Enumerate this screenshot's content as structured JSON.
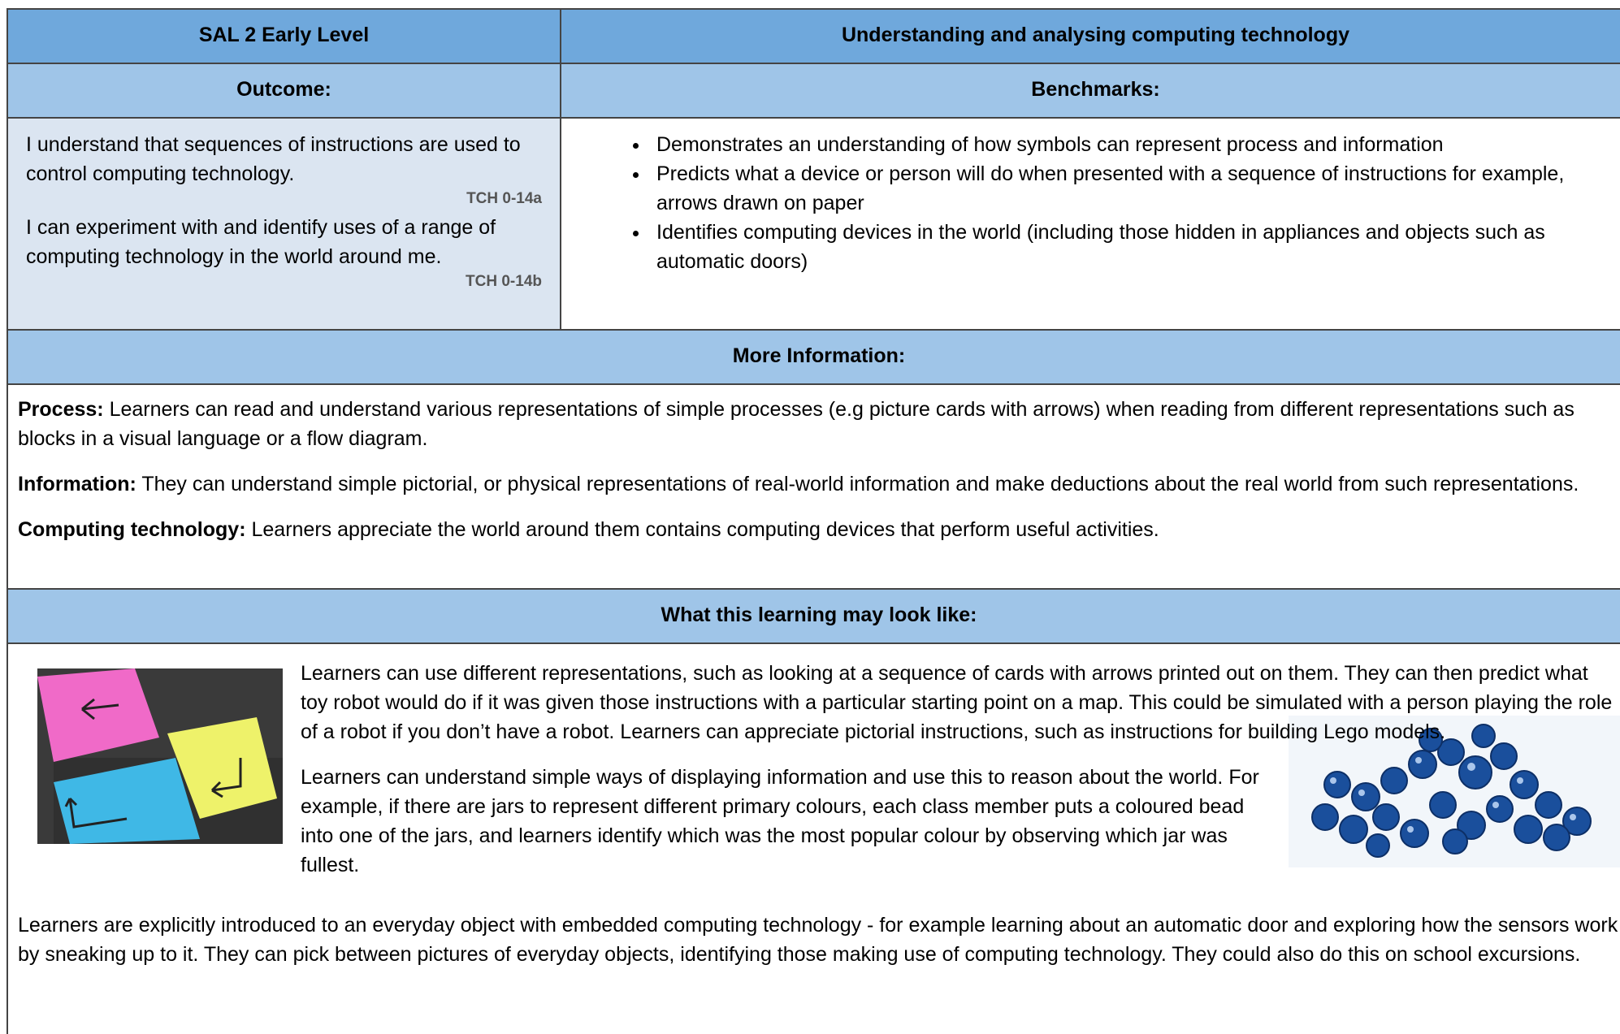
{
  "header": {
    "left": "SAL 2 Early Level",
    "right": "Understanding and analysing computing technology"
  },
  "outcome": {
    "heading": "Outcome:",
    "benchmarks_heading": "Benchmarks:",
    "statements": [
      {
        "text": "I understand that sequences of instructions are used to control computing technology.",
        "code": "TCH 0-14a"
      },
      {
        "text": "I can experiment with and identify uses of a range of computing technology in the world around me.",
        "code": "TCH 0-14b"
      }
    ],
    "benchmarks": [
      "Demonstrates an understanding of how symbols can represent process and information",
      "Predicts what a device or person will do when presented with a sequence of instructions for example, arrows drawn on paper",
      "Identifies computing devices in the world (including those hidden in appliances and objects such as automatic doors)"
    ]
  },
  "more_info": {
    "heading": "More Information:",
    "items": [
      {
        "label": "Process:",
        "text": "Learners can read and understand various representations of simple processes (e.g picture cards with arrows) when reading from different representations such as blocks in a visual language or a flow diagram."
      },
      {
        "label": "Information:",
        "text": "They can understand simple  pictorial, or physical representations of real-world information and make deductions about the real world from such representations."
      },
      {
        "label": "Computing technology:",
        "text": "Learners appreciate the world around them contains computing devices that perform useful activities."
      }
    ]
  },
  "learning": {
    "heading": "What this learning may look like:",
    "paragraphs": [
      "Learners can use different representations, such as looking at a sequence of cards with arrows printed out on them.  They can then predict what toy robot would do if it was given those instructions with a particular starting point on a map. This could be simulated with a person playing the role of a robot if you don’t have a robot.  Learners can appreciate pictorial instructions, such as instructions for building Lego models.",
      "Learners can understand simple ways of displaying information and use this to reason about the world. For example, if there are jars to represent different primary colours, each class member puts a coloured bead into one of the jars, and learners identify which was the most popular colour by observing which jar was fullest.",
      "Learners are explicitly introduced to an everyday object with embedded computing technology - for example learning about an automatic door and exploring how the sensors work by sneaking up to it.   They can pick between pictures of everyday objects, identifying those making use of computing technology.  They could also do this on school excursions."
    ]
  }
}
